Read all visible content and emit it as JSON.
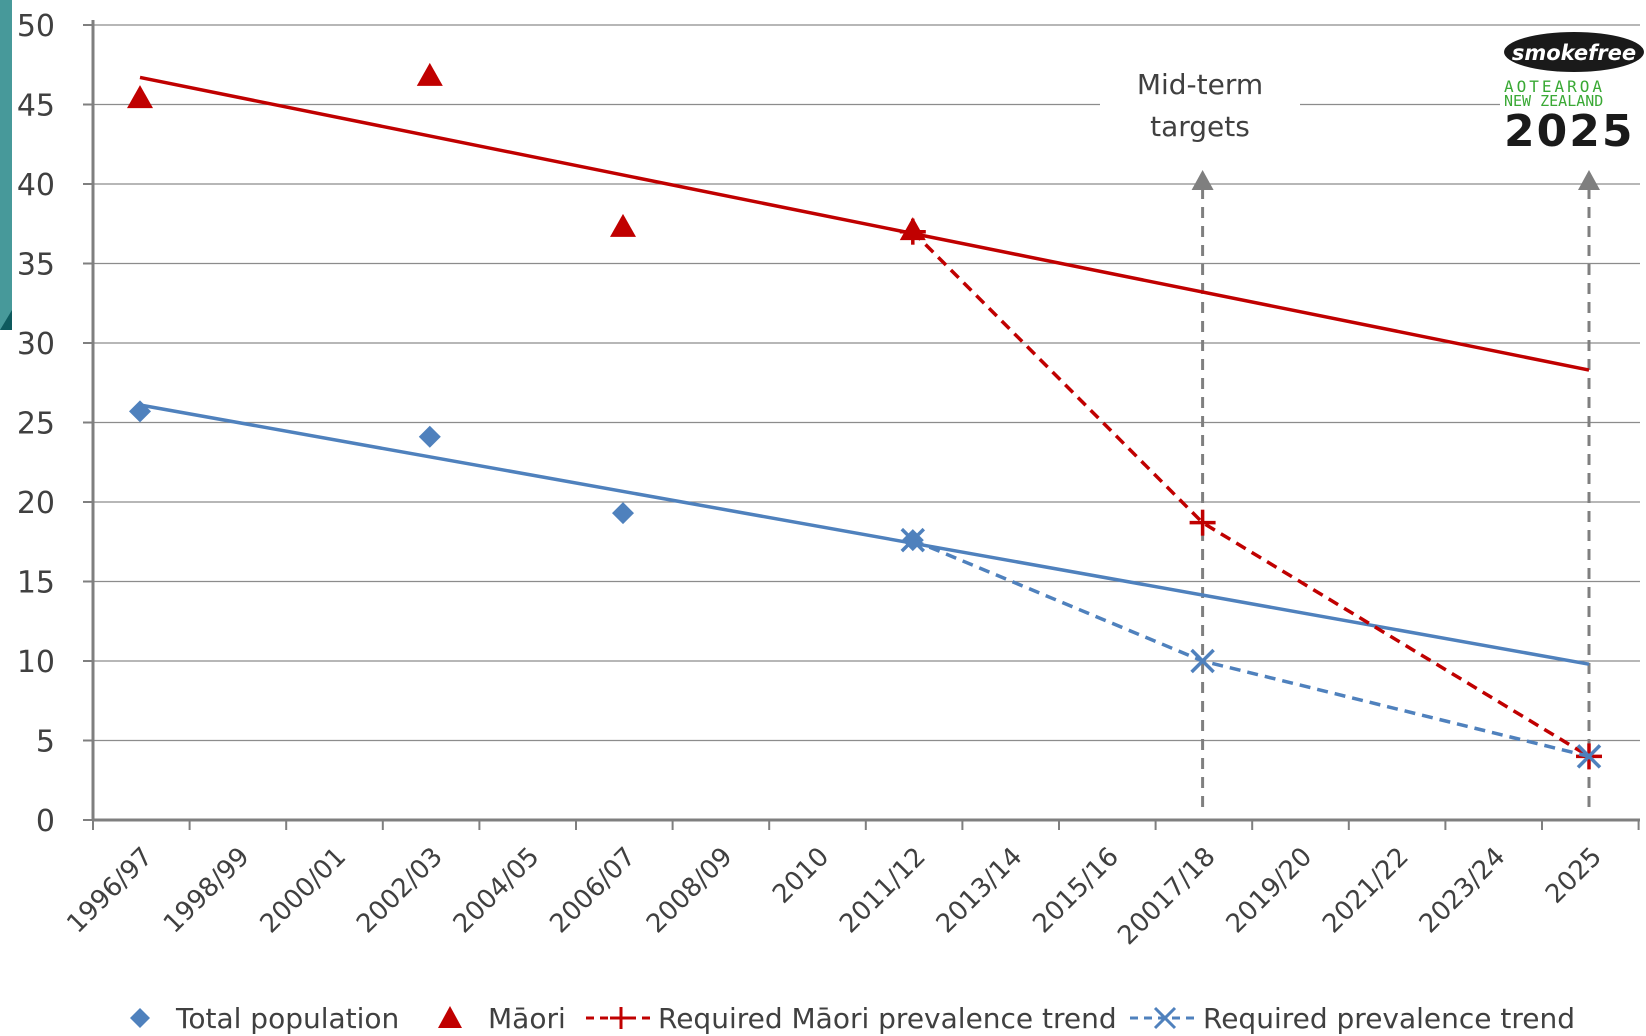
{
  "chart_data": {
    "type": "line",
    "title": "",
    "xlabel": "",
    "ylabel": "",
    "ylim": [
      0,
      50
    ],
    "y_ticks": [
      0,
      5,
      10,
      15,
      20,
      25,
      30,
      35,
      40,
      45,
      50
    ],
    "grid": "horizontal",
    "legend_position": "bottom",
    "categories": [
      "1996/97",
      "1998/99",
      "2000/01",
      "2002/03",
      "2004/05",
      "2006/07",
      "2008/09",
      "2010",
      "2011/12",
      "2013/14",
      "2015/16",
      "20017/18",
      "2019/20",
      "2021/22",
      "2023/24",
      "2025"
    ],
    "series": [
      {
        "name": "Total population",
        "kind": "scatter",
        "marker": "diamond",
        "color": "#4f81bd",
        "points": [
          {
            "x": "1996/97",
            "y": 25.7
          },
          {
            "x": "2002/03",
            "y": 24.1
          },
          {
            "x": "2006/07",
            "y": 19.3
          },
          {
            "x": "2011/12",
            "y": 17.6
          }
        ],
        "trendline": {
          "from": {
            "x": "1996/97",
            "y": 26.1
          },
          "to": {
            "x": "2025",
            "y": 9.8
          }
        }
      },
      {
        "name": "Māori",
        "kind": "scatter",
        "marker": "triangle",
        "color": "#c00000",
        "points": [
          {
            "x": "1996/97",
            "y": 45.4
          },
          {
            "x": "2002/03",
            "y": 46.8
          },
          {
            "x": "2006/07",
            "y": 37.3
          },
          {
            "x": "2011/12",
            "y": 37.1
          }
        ],
        "trendline": {
          "from": {
            "x": "1996/97",
            "y": 46.7
          },
          "to": {
            "x": "2025",
            "y": 28.3
          }
        }
      },
      {
        "name": "Required Māori prevalence trend",
        "kind": "dashed-line",
        "marker": "plus",
        "color": "#c00000",
        "points": [
          {
            "x": "2011/12",
            "y": 37.0
          },
          {
            "x": "20017/18",
            "y": 18.7
          },
          {
            "x": "2025",
            "y": 4.0
          }
        ]
      },
      {
        "name": "Required prevalence trend",
        "kind": "dashed-line",
        "marker": "x",
        "color": "#4f81bd",
        "points": [
          {
            "x": "2011/12",
            "y": 17.6
          },
          {
            "x": "20017/18",
            "y": 10.0
          },
          {
            "x": "2025",
            "y": 4.0
          }
        ]
      }
    ],
    "annotations": {
      "midterm_label_line1": "Mid-term",
      "midterm_label_line2": "targets",
      "target_lines_at": [
        "20017/18",
        "2025"
      ]
    },
    "logo": {
      "word": "smokefree",
      "line1": "AOTEAROA",
      "line2": "NEW ZEALAND",
      "year": "2025"
    }
  },
  "colors": {
    "total": "#4f81bd",
    "maori": "#c00000",
    "grid": "#8c8c8c",
    "axis": "#7f7f7f",
    "target_line": "#7f7f7f",
    "edge_teal": "#0e5a5e"
  }
}
